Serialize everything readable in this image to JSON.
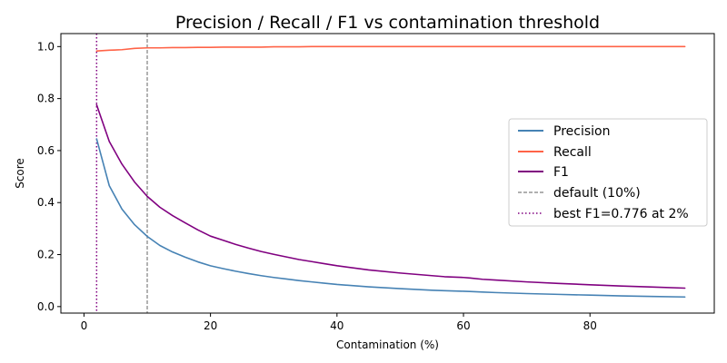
{
  "chart_data": {
    "type": "line",
    "title": "Precision / Recall / F1 vs contamination threshold",
    "xlabel": "Contamination (%)",
    "ylabel": "Score",
    "xlim": [
      -3.65,
      99.65
    ],
    "ylim": [
      -0.025,
      1.05
    ],
    "xticks": [
      0,
      20,
      40,
      60,
      80
    ],
    "yticks": [
      0.0,
      0.2,
      0.4,
      0.6,
      0.8,
      1.0
    ],
    "ytick_labels": [
      "0.0",
      "0.2",
      "0.4",
      "0.6",
      "0.8",
      "1.0"
    ],
    "grid": false,
    "legend_position": "center-right",
    "x": [
      2,
      4,
      6,
      8,
      10,
      12,
      14,
      16,
      18,
      20,
      22,
      24,
      26,
      28,
      30,
      32,
      34,
      36,
      38,
      40,
      45,
      50,
      55,
      57,
      60,
      61,
      63,
      65,
      70,
      75,
      80,
      85,
      90,
      95
    ],
    "series": [
      {
        "name": "Precision",
        "color": "#4682b4",
        "values": [
          0.645,
          0.465,
          0.375,
          0.315,
          0.27,
          0.235,
          0.21,
          0.19,
          0.172,
          0.157,
          0.146,
          0.136,
          0.127,
          0.119,
          0.112,
          0.106,
          0.1,
          0.095,
          0.09,
          0.085,
          0.076,
          0.069,
          0.063,
          0.061,
          0.059,
          0.058,
          0.056,
          0.054,
          0.05,
          0.047,
          0.044,
          0.041,
          0.039,
          0.037
        ]
      },
      {
        "name": "Recall",
        "color": "#ff6347",
        "values": [
          0.983,
          0.986,
          0.988,
          0.993,
          0.995,
          0.995,
          0.996,
          0.996,
          0.997,
          0.997,
          0.998,
          0.998,
          0.998,
          0.998,
          0.999,
          0.999,
          0.999,
          1.0,
          1.0,
          1.0,
          1.0,
          1.0,
          1.0,
          1.0,
          1.0,
          1.0,
          1.0,
          1.0,
          1.0,
          1.0,
          1.0,
          1.0,
          1.0,
          1.0
        ]
      },
      {
        "name": "F1",
        "color": "#800080",
        "values": [
          0.776,
          0.635,
          0.548,
          0.479,
          0.424,
          0.382,
          0.35,
          0.322,
          0.295,
          0.271,
          0.255,
          0.239,
          0.225,
          0.212,
          0.201,
          0.191,
          0.181,
          0.173,
          0.165,
          0.157,
          0.141,
          0.129,
          0.119,
          0.115,
          0.112,
          0.11,
          0.105,
          0.102,
          0.095,
          0.089,
          0.084,
          0.079,
          0.075,
          0.071
        ]
      }
    ],
    "vlines": [
      {
        "x": 10,
        "label": "default (10%)",
        "color": "#808080",
        "style": "dashed"
      },
      {
        "x": 2,
        "label": "best F1=0.776 at 2%",
        "color": "#800080",
        "style": "dotted"
      }
    ]
  }
}
